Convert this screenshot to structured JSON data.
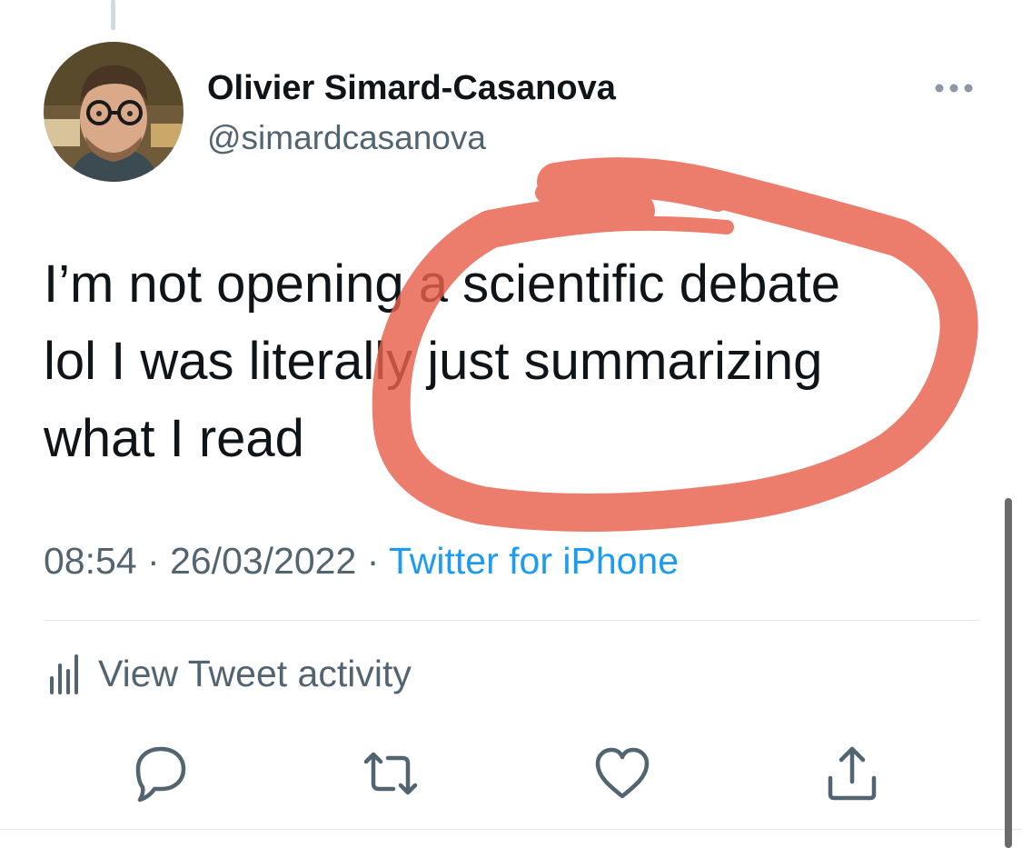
{
  "tweet": {
    "author_name": "Olivier Simard-Casanova",
    "author_handle": "@simardcasanova",
    "text_lines": [
      "I’m not opening a scientific debate",
      "lol I was literally just summarizing",
      "what I read"
    ],
    "time": "08:54",
    "separator": "·",
    "date": "26/03/2022",
    "source": "Twitter for iPhone"
  },
  "activity": {
    "label": "View Tweet activity",
    "icon": "bar-chart-icon"
  },
  "actions": [
    {
      "name": "reply",
      "icon": "speech-bubble-icon"
    },
    {
      "name": "retweet",
      "icon": "retweet-arrows-icon"
    },
    {
      "name": "like",
      "icon": "heart-icon"
    },
    {
      "name": "share",
      "icon": "share-upload-icon"
    }
  ],
  "annotation": {
    "color": "#e8604c"
  },
  "colors": {
    "text": "#0f1419",
    "secondary": "#536471",
    "link": "#1d9bf0",
    "divider": "#e3e7ea"
  }
}
